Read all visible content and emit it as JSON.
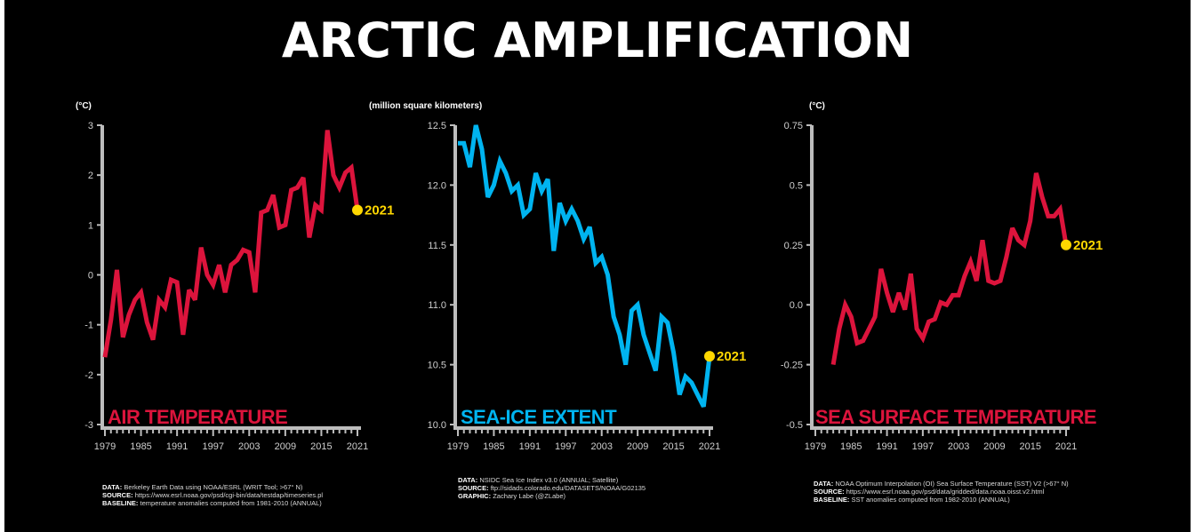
{
  "title": "ARCTIC AMPLIFICATION",
  "colors": {
    "background": "#000000",
    "warm": "#dc143c",
    "ice": "#00b4f0",
    "highlight": "#ffd700",
    "axis": "#bdbdbd"
  },
  "chart_data": [
    {
      "type": "line",
      "title": "AIR TEMPERATURE",
      "ylabel": "(°C)",
      "xlabel": "",
      "ylim": [
        -3,
        3
      ],
      "yticks": [
        3,
        2,
        1,
        0,
        -1,
        -2,
        -3
      ],
      "ytick_labels": [
        "3",
        "2",
        "1",
        "0",
        "-1",
        "-2",
        "-3"
      ],
      "xlim": [
        1979,
        2021
      ],
      "xticks": [
        1979,
        1985,
        1991,
        1997,
        2003,
        2009,
        2015,
        2021
      ],
      "xtick_labels": [
        "1979",
        "1985",
        "1991",
        "1997",
        "2003",
        "2009",
        "2015",
        "2021"
      ],
      "color": "#dc143c",
      "highlight_label": "2021",
      "x": [
        1979,
        1980,
        1981,
        1982,
        1983,
        1984,
        1985,
        1986,
        1987,
        1988,
        1989,
        1990,
        1991,
        1992,
        1993,
        1994,
        1995,
        1996,
        1997,
        1998,
        1999,
        2000,
        2001,
        2002,
        2003,
        2004,
        2005,
        2006,
        2007,
        2008,
        2009,
        2010,
        2011,
        2012,
        2013,
        2014,
        2015,
        2016,
        2017,
        2018,
        2019,
        2020,
        2021
      ],
      "values": [
        -1.65,
        -0.9,
        0.1,
        -1.25,
        -0.8,
        -0.5,
        -0.35,
        -0.95,
        -1.3,
        -0.5,
        -0.65,
        -0.1,
        -0.15,
        -1.2,
        -0.3,
        -0.5,
        0.55,
        0.0,
        -0.2,
        0.2,
        -0.35,
        0.2,
        0.3,
        0.5,
        0.45,
        -0.35,
        1.25,
        1.3,
        1.6,
        0.95,
        1.0,
        1.7,
        1.75,
        1.95,
        0.75,
        1.4,
        1.3,
        2.9,
        2.0,
        1.75,
        2.05,
        2.15,
        1.3
      ],
      "notes": [
        {
          "label": "DATA:",
          "text": "Berkeley Earth Data using NOAA/ESRL (WRIT Tool; >67° N)"
        },
        {
          "label": "SOURCE:",
          "text": "https://www.esrl.noaa.gov/psd/cgi-bin/data/testdap/timeseries.pl"
        },
        {
          "label": "BASELINE:",
          "text": "temperature anomalies computed from 1981-2010 (ANNUAL)"
        }
      ]
    },
    {
      "type": "line",
      "title": "SEA-ICE EXTENT",
      "ylabel": "(million square kilometers)",
      "xlabel": "",
      "ylim": [
        10.0,
        12.5
      ],
      "yticks": [
        12.5,
        12.0,
        11.5,
        11.0,
        10.5,
        10.0
      ],
      "ytick_labels": [
        "12.5",
        "12.0",
        "11.5",
        "11.0",
        "10.5",
        "10.0"
      ],
      "xlim": [
        1979,
        2021
      ],
      "xticks": [
        1979,
        1985,
        1991,
        1997,
        2003,
        2009,
        2015,
        2021
      ],
      "xtick_labels": [
        "1979",
        "1985",
        "1991",
        "1997",
        "2003",
        "2009",
        "2015",
        "2021"
      ],
      "color": "#00b4f0",
      "highlight_label": "2021",
      "x": [
        1979,
        1980,
        1981,
        1982,
        1983,
        1984,
        1985,
        1986,
        1987,
        1988,
        1989,
        1990,
        1991,
        1992,
        1993,
        1994,
        1995,
        1996,
        1997,
        1998,
        1999,
        2000,
        2001,
        2002,
        2003,
        2004,
        2005,
        2006,
        2007,
        2008,
        2009,
        2010,
        2011,
        2012,
        2013,
        2014,
        2015,
        2016,
        2017,
        2018,
        2019,
        2020,
        2021
      ],
      "values": [
        12.35,
        12.35,
        12.15,
        12.5,
        12.3,
        11.9,
        12.0,
        12.2,
        12.1,
        11.95,
        12.0,
        11.75,
        11.8,
        12.1,
        11.95,
        12.05,
        11.45,
        11.85,
        11.7,
        11.8,
        11.7,
        11.55,
        11.65,
        11.35,
        11.4,
        11.25,
        10.9,
        10.75,
        10.5,
        10.95,
        11.0,
        10.75,
        10.6,
        10.45,
        10.9,
        10.85,
        10.6,
        10.25,
        10.4,
        10.35,
        10.25,
        10.15,
        10.57
      ],
      "notes": [
        {
          "label": "DATA:",
          "text": "NSIDC Sea Ice Index v3.0 (ANNUAL; Satellite)"
        },
        {
          "label": "SOURCE:",
          "text": "ftp://sidads.colorado.edu/DATASETS/NOAA/G02135"
        },
        {
          "label": "GRAPHIC:",
          "text": "Zachary Labe (@ZLabe)"
        }
      ]
    },
    {
      "type": "line",
      "title": "SEA SURFACE TEMPERATURE",
      "ylabel": "(°C)",
      "xlabel": "",
      "ylim": [
        -0.5,
        0.75
      ],
      "yticks": [
        0.75,
        0.5,
        0.25,
        0.0,
        -0.25,
        -0.5
      ],
      "ytick_labels": [
        "0.75",
        "0.5",
        "0.25",
        "0.0",
        "-0.25",
        "-0.5"
      ],
      "xlim": [
        1979,
        2021
      ],
      "xticks": [
        1979,
        1985,
        1991,
        1997,
        2003,
        2009,
        2015,
        2021
      ],
      "xtick_labels": [
        "1979",
        "1985",
        "1991",
        "1997",
        "2003",
        "2009",
        "2015",
        "2021"
      ],
      "color": "#dc143c",
      "highlight_label": "2021",
      "x": [
        1982,
        1983,
        1984,
        1985,
        1986,
        1987,
        1988,
        1989,
        1990,
        1991,
        1992,
        1993,
        1994,
        1995,
        1996,
        1997,
        1998,
        1999,
        2000,
        2001,
        2002,
        2003,
        2004,
        2005,
        2006,
        2007,
        2008,
        2009,
        2010,
        2011,
        2012,
        2013,
        2014,
        2015,
        2016,
        2017,
        2018,
        2019,
        2020,
        2021
      ],
      "values": [
        -0.25,
        -0.1,
        0.0,
        -0.05,
        -0.16,
        -0.15,
        -0.1,
        -0.05,
        0.15,
        0.05,
        -0.03,
        0.05,
        -0.02,
        0.13,
        -0.1,
        -0.14,
        -0.07,
        -0.06,
        0.01,
        0.0,
        0.04,
        0.04,
        0.12,
        0.18,
        0.1,
        0.27,
        0.1,
        0.09,
        0.1,
        0.2,
        0.32,
        0.27,
        0.25,
        0.35,
        0.55,
        0.45,
        0.37,
        0.37,
        0.4,
        0.25
      ],
      "notes": [
        {
          "label": "DATA:",
          "text": "NOAA Optimum Interpolation (OI) Sea Surface Temperature (SST) V2 (>67° N)"
        },
        {
          "label": "SOURCE:",
          "text": "https://www.esrl.noaa.gov/psd/data/gridded/data.noaa.oisst.v2.html"
        },
        {
          "label": "BASELINE:",
          "text": "SST anomalies computed from 1982-2010 (ANNUAL)"
        }
      ]
    }
  ]
}
